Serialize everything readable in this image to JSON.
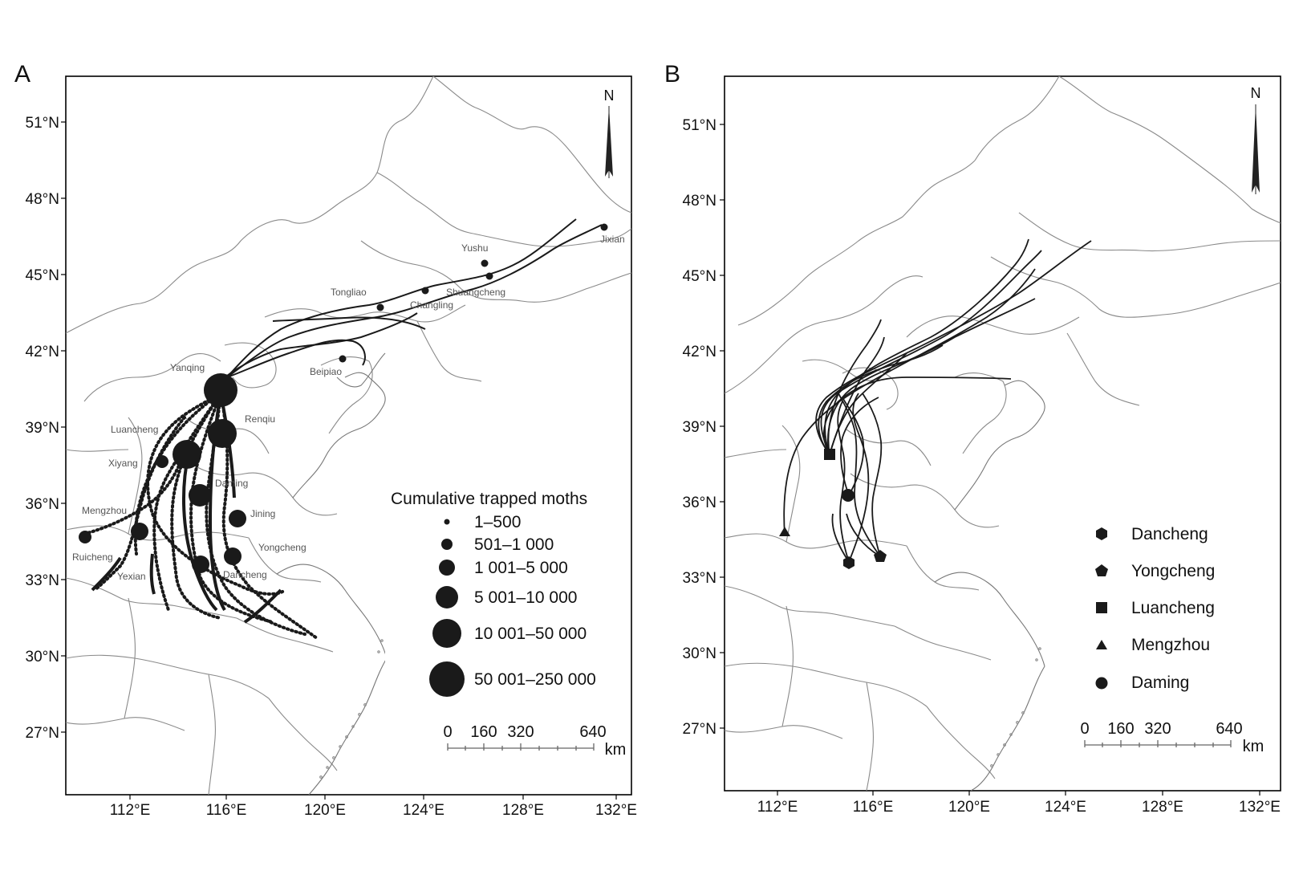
{
  "panel_a": {
    "letter": "A",
    "north": "N",
    "lon_ticks": [
      "112°E",
      "116°E",
      "120°E",
      "124°E",
      "128°E",
      "132°E"
    ],
    "lat_ticks": [
      "27°N",
      "30°N",
      "33°N",
      "36°N",
      "39°N",
      "42°N",
      "45°N",
      "48°N",
      "51°N"
    ],
    "legend": {
      "title": "Cumulative trapped moths",
      "items": [
        "1–500",
        "501–1 000",
        "1 001–5 000",
        "5 001–10 000",
        "10 001–50 000",
        "50 001–250 000"
      ]
    },
    "scale": {
      "labels": [
        "0",
        "160",
        "320",
        "640"
      ],
      "unit": "km"
    },
    "places": [
      "Jixian",
      "Yushu",
      "Shuangcheng",
      "Tongliao",
      "Changling",
      "Beipiao",
      "Yanqing",
      "Renqiu",
      "Luancheng",
      "Xiyang",
      "Daming",
      "Jining",
      "Mengzhou",
      "Ruicheng",
      "Yongcheng",
      "Yexian",
      "Dancheng"
    ]
  },
  "panel_b": {
    "letter": "B",
    "north": "N",
    "lon_ticks": [
      "112°E",
      "116°E",
      "120°E",
      "124°E",
      "128°E",
      "132°E"
    ],
    "lat_ticks": [
      "27°N",
      "30°N",
      "33°N",
      "36°N",
      "39°N",
      "42°N",
      "45°N",
      "48°N",
      "51°N"
    ],
    "legend": {
      "items": [
        {
          "label": "Dancheng",
          "marker": "hexagon"
        },
        {
          "label": "Yongcheng",
          "marker": "pentagon"
        },
        {
          "label": "Luancheng",
          "marker": "square"
        },
        {
          "label": "Mengzhou",
          "marker": "triangle"
        },
        {
          "label": "Daming",
          "marker": "circle"
        }
      ]
    },
    "scale": {
      "labels": [
        "0",
        "160",
        "320",
        "640"
      ],
      "unit": "km"
    }
  },
  "colors": {
    "ink": "#1a1a1a",
    "boundary": "#8a8a8a",
    "frame": "#000000"
  }
}
